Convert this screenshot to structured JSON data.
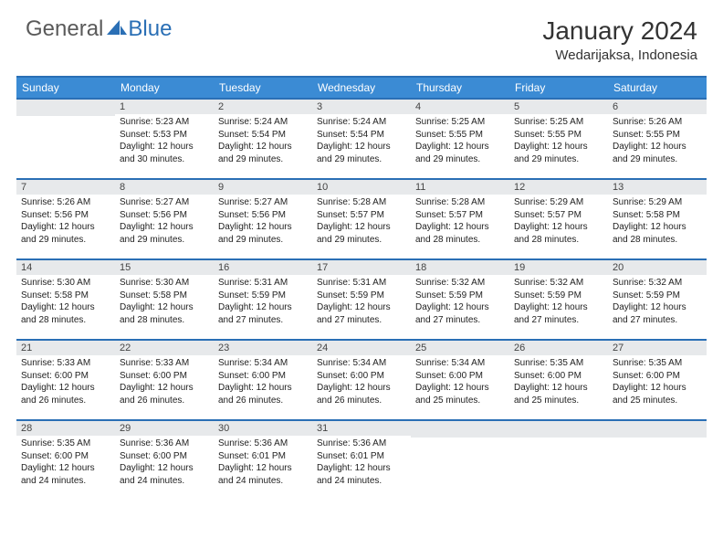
{
  "logo": {
    "general": "General",
    "blue": "Blue"
  },
  "title": "January 2024",
  "location": "Wedarijaksa, Indonesia",
  "colors": {
    "header_bg": "#3b8bd4",
    "header_border": "#2a6fb5",
    "daynum_bg": "#e7e9eb",
    "text": "#222222",
    "logo_gray": "#5a5a5a",
    "logo_blue": "#2a6fb5"
  },
  "weekdays": [
    "Sunday",
    "Monday",
    "Tuesday",
    "Wednesday",
    "Thursday",
    "Friday",
    "Saturday"
  ],
  "weeks": [
    [
      {
        "empty": true
      },
      {
        "num": "1",
        "sunrise": "Sunrise: 5:23 AM",
        "sunset": "Sunset: 5:53 PM",
        "daylight": "Daylight: 12 hours and 30 minutes."
      },
      {
        "num": "2",
        "sunrise": "Sunrise: 5:24 AM",
        "sunset": "Sunset: 5:54 PM",
        "daylight": "Daylight: 12 hours and 29 minutes."
      },
      {
        "num": "3",
        "sunrise": "Sunrise: 5:24 AM",
        "sunset": "Sunset: 5:54 PM",
        "daylight": "Daylight: 12 hours and 29 minutes."
      },
      {
        "num": "4",
        "sunrise": "Sunrise: 5:25 AM",
        "sunset": "Sunset: 5:55 PM",
        "daylight": "Daylight: 12 hours and 29 minutes."
      },
      {
        "num": "5",
        "sunrise": "Sunrise: 5:25 AM",
        "sunset": "Sunset: 5:55 PM",
        "daylight": "Daylight: 12 hours and 29 minutes."
      },
      {
        "num": "6",
        "sunrise": "Sunrise: 5:26 AM",
        "sunset": "Sunset: 5:55 PM",
        "daylight": "Daylight: 12 hours and 29 minutes."
      }
    ],
    [
      {
        "num": "7",
        "sunrise": "Sunrise: 5:26 AM",
        "sunset": "Sunset: 5:56 PM",
        "daylight": "Daylight: 12 hours and 29 minutes."
      },
      {
        "num": "8",
        "sunrise": "Sunrise: 5:27 AM",
        "sunset": "Sunset: 5:56 PM",
        "daylight": "Daylight: 12 hours and 29 minutes."
      },
      {
        "num": "9",
        "sunrise": "Sunrise: 5:27 AM",
        "sunset": "Sunset: 5:56 PM",
        "daylight": "Daylight: 12 hours and 29 minutes."
      },
      {
        "num": "10",
        "sunrise": "Sunrise: 5:28 AM",
        "sunset": "Sunset: 5:57 PM",
        "daylight": "Daylight: 12 hours and 29 minutes."
      },
      {
        "num": "11",
        "sunrise": "Sunrise: 5:28 AM",
        "sunset": "Sunset: 5:57 PM",
        "daylight": "Daylight: 12 hours and 28 minutes."
      },
      {
        "num": "12",
        "sunrise": "Sunrise: 5:29 AM",
        "sunset": "Sunset: 5:57 PM",
        "daylight": "Daylight: 12 hours and 28 minutes."
      },
      {
        "num": "13",
        "sunrise": "Sunrise: 5:29 AM",
        "sunset": "Sunset: 5:58 PM",
        "daylight": "Daylight: 12 hours and 28 minutes."
      }
    ],
    [
      {
        "num": "14",
        "sunrise": "Sunrise: 5:30 AM",
        "sunset": "Sunset: 5:58 PM",
        "daylight": "Daylight: 12 hours and 28 minutes."
      },
      {
        "num": "15",
        "sunrise": "Sunrise: 5:30 AM",
        "sunset": "Sunset: 5:58 PM",
        "daylight": "Daylight: 12 hours and 28 minutes."
      },
      {
        "num": "16",
        "sunrise": "Sunrise: 5:31 AM",
        "sunset": "Sunset: 5:59 PM",
        "daylight": "Daylight: 12 hours and 27 minutes."
      },
      {
        "num": "17",
        "sunrise": "Sunrise: 5:31 AM",
        "sunset": "Sunset: 5:59 PM",
        "daylight": "Daylight: 12 hours and 27 minutes."
      },
      {
        "num": "18",
        "sunrise": "Sunrise: 5:32 AM",
        "sunset": "Sunset: 5:59 PM",
        "daylight": "Daylight: 12 hours and 27 minutes."
      },
      {
        "num": "19",
        "sunrise": "Sunrise: 5:32 AM",
        "sunset": "Sunset: 5:59 PM",
        "daylight": "Daylight: 12 hours and 27 minutes."
      },
      {
        "num": "20",
        "sunrise": "Sunrise: 5:32 AM",
        "sunset": "Sunset: 5:59 PM",
        "daylight": "Daylight: 12 hours and 27 minutes."
      }
    ],
    [
      {
        "num": "21",
        "sunrise": "Sunrise: 5:33 AM",
        "sunset": "Sunset: 6:00 PM",
        "daylight": "Daylight: 12 hours and 26 minutes."
      },
      {
        "num": "22",
        "sunrise": "Sunrise: 5:33 AM",
        "sunset": "Sunset: 6:00 PM",
        "daylight": "Daylight: 12 hours and 26 minutes."
      },
      {
        "num": "23",
        "sunrise": "Sunrise: 5:34 AM",
        "sunset": "Sunset: 6:00 PM",
        "daylight": "Daylight: 12 hours and 26 minutes."
      },
      {
        "num": "24",
        "sunrise": "Sunrise: 5:34 AM",
        "sunset": "Sunset: 6:00 PM",
        "daylight": "Daylight: 12 hours and 26 minutes."
      },
      {
        "num": "25",
        "sunrise": "Sunrise: 5:34 AM",
        "sunset": "Sunset: 6:00 PM",
        "daylight": "Daylight: 12 hours and 25 minutes."
      },
      {
        "num": "26",
        "sunrise": "Sunrise: 5:35 AM",
        "sunset": "Sunset: 6:00 PM",
        "daylight": "Daylight: 12 hours and 25 minutes."
      },
      {
        "num": "27",
        "sunrise": "Sunrise: 5:35 AM",
        "sunset": "Sunset: 6:00 PM",
        "daylight": "Daylight: 12 hours and 25 minutes."
      }
    ],
    [
      {
        "num": "28",
        "sunrise": "Sunrise: 5:35 AM",
        "sunset": "Sunset: 6:00 PM",
        "daylight": "Daylight: 12 hours and 24 minutes."
      },
      {
        "num": "29",
        "sunrise": "Sunrise: 5:36 AM",
        "sunset": "Sunset: 6:00 PM",
        "daylight": "Daylight: 12 hours and 24 minutes."
      },
      {
        "num": "30",
        "sunrise": "Sunrise: 5:36 AM",
        "sunset": "Sunset: 6:01 PM",
        "daylight": "Daylight: 12 hours and 24 minutes."
      },
      {
        "num": "31",
        "sunrise": "Sunrise: 5:36 AM",
        "sunset": "Sunset: 6:01 PM",
        "daylight": "Daylight: 12 hours and 24 minutes."
      },
      {
        "empty": true
      },
      {
        "empty": true
      },
      {
        "empty": true
      }
    ]
  ]
}
